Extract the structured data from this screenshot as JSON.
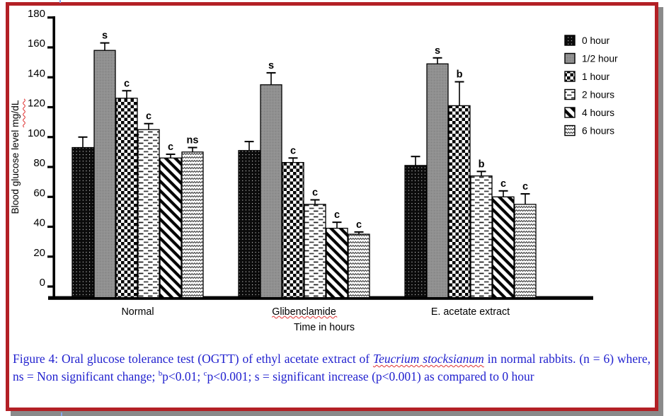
{
  "figure": {
    "border_color": "#b32025",
    "shadow_color": "#8a8a8a",
    "background": "#ffffff"
  },
  "chart_data": {
    "type": "bar",
    "title": "",
    "categories": [
      "Normal",
      "Glibenclamide",
      "E. acetate extract"
    ],
    "squiggle_categories": [
      "Glibenclamide"
    ],
    "series": [
      {
        "name": "0 hour",
        "pattern": "dots-on-black",
        "values": [
          93,
          91,
          81
        ],
        "errors": [
          7,
          6,
          6
        ],
        "sig": [
          "",
          "",
          ""
        ]
      },
      {
        "name": "1/2 hour",
        "pattern": "solid-gray",
        "values": [
          158,
          135,
          149
        ],
        "errors": [
          5,
          8,
          4
        ],
        "sig": [
          "s",
          "s",
          "s"
        ]
      },
      {
        "name": "1 hour",
        "pattern": "checkerboard",
        "values": [
          126,
          83,
          121
        ],
        "errors": [
          5,
          3,
          16
        ],
        "sig": [
          "c",
          "c",
          "b"
        ]
      },
      {
        "name": "2 hours",
        "pattern": "horizontal-dashes",
        "values": [
          105,
          55,
          74
        ],
        "errors": [
          4,
          3,
          3
        ],
        "sig": [
          "c",
          "c",
          "b"
        ]
      },
      {
        "name": "4 hours",
        "pattern": "diagonal-stripes",
        "values": [
          86,
          39,
          60
        ],
        "errors": [
          2.5,
          4,
          4
        ],
        "sig": [
          "c",
          "c",
          "c"
        ]
      },
      {
        "name": "6 hours",
        "pattern": "zigzag",
        "values": [
          90,
          35,
          55
        ],
        "errors": [
          3,
          1.5,
          7
        ],
        "sig": [
          "ns",
          "c",
          "c"
        ]
      }
    ],
    "xlabel": "Time in hours",
    "ylabel": "Blood glucose level  mg/dL",
    "ylabel_squiggle_part": "mg/dL",
    "ylim": [
      0,
      180
    ],
    "ytick_step": 20,
    "grid": false,
    "legend_position": "top-right",
    "colors": {
      "ink": "#000000",
      "bar_gray_fill": "#909090",
      "squiggle_red": "#e03030"
    }
  },
  "caption": {
    "color": "#2222cf",
    "parts": [
      {
        "t": "Figure 4: Oral glucose tolerance test (OGTT) of ethyl acetate extract of ",
        "s": "n"
      },
      {
        "t": "Teucrium stocksianum",
        "s": "species"
      },
      {
        "t": " in  normal rabbits. (n = 6) where, ns = Non significant change; ",
        "s": "n"
      },
      {
        "t": "b",
        "s": "sup"
      },
      {
        "t": "p<0.01; ",
        "s": "n"
      },
      {
        "t": "c",
        "s": "sup"
      },
      {
        "t": "p<0.001; s = significant increase (p<0.001) as compared to 0 hour",
        "s": "n"
      }
    ]
  }
}
